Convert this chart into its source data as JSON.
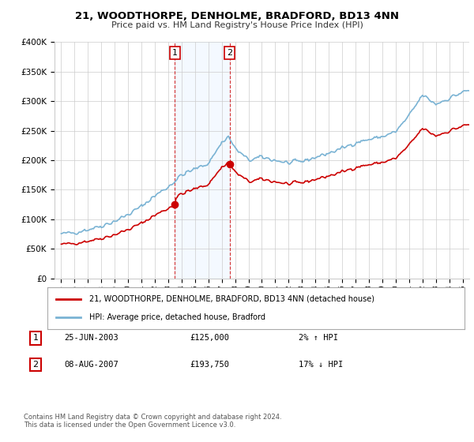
{
  "title": "21, WOODTHORPE, DENHOLME, BRADFORD, BD13 4NN",
  "subtitle": "Price paid vs. HM Land Registry's House Price Index (HPI)",
  "legend_line1": "21, WOODTHORPE, DENHOLME, BRADFORD, BD13 4NN (detached house)",
  "legend_line2": "HPI: Average price, detached house, Bradford",
  "annotation1_label": "1",
  "annotation1_date": "25-JUN-2003",
  "annotation1_price": "£125,000",
  "annotation1_hpi": "2% ↑ HPI",
  "annotation2_label": "2",
  "annotation2_date": "08-AUG-2007",
  "annotation2_price": "£193,750",
  "annotation2_hpi": "17% ↓ HPI",
  "footer": "Contains HM Land Registry data © Crown copyright and database right 2024.\nThis data is licensed under the Open Government Licence v3.0.",
  "sale1_year": 2003.5,
  "sale1_price": 125000,
  "sale2_year": 2007.58,
  "sale2_price": 193750,
  "hpi_color": "#7ab3d4",
  "price_color": "#cc0000",
  "background_color": "#ffffff",
  "plot_bg_color": "#ffffff",
  "highlight_color": "#ddeeff",
  "ylim": [
    0,
    400000
  ],
  "xlim_start": 1994.5,
  "xlim_end": 2025.5
}
